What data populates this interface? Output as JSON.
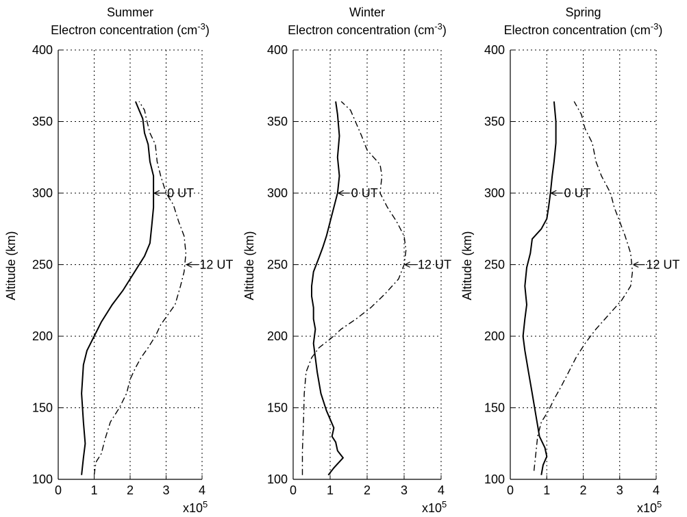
{
  "figure": {
    "ylabel": "Altitude (km)",
    "panel_subtitle": "Electron concentration (cm",
    "panel_subtitle_exp": "-3",
    "panel_subtitle_close": ")",
    "x_multiplier": "x10",
    "x_multiplier_exp": "5"
  },
  "chart_data": [
    {
      "type": "line",
      "title": "Summer",
      "subtitle": "Electron concentration (cm-3)",
      "xlabel": "",
      "xunit_multiplier": "x10^5",
      "ylabel": "Altitude (km)",
      "xlim": [
        0,
        4
      ],
      "ylim": [
        100,
        400
      ],
      "xticks": [
        0,
        1,
        2,
        3,
        4
      ],
      "yticks": [
        100,
        150,
        200,
        250,
        300,
        350,
        400
      ],
      "grid": true,
      "series": [
        {
          "name": "0 UT",
          "style": "solid",
          "points": [
            [
              0.65,
              103
            ],
            [
              0.7,
              115
            ],
            [
              0.75,
              125
            ],
            [
              0.7,
              140
            ],
            [
              0.65,
              160
            ],
            [
              0.7,
              180
            ],
            [
              0.8,
              190
            ],
            [
              1.0,
              200
            ],
            [
              1.2,
              210
            ],
            [
              1.5,
              222
            ],
            [
              1.8,
              232
            ],
            [
              2.0,
              240
            ],
            [
              2.2,
              248
            ],
            [
              2.4,
              256
            ],
            [
              2.55,
              265
            ],
            [
              2.6,
              277
            ],
            [
              2.65,
              290
            ],
            [
              2.65,
              300
            ],
            [
              2.65,
              312
            ],
            [
              2.55,
              322
            ],
            [
              2.5,
              334
            ],
            [
              2.4,
              342
            ],
            [
              2.35,
              352
            ],
            [
              2.25,
              358
            ],
            [
              2.15,
              364
            ]
          ]
        },
        {
          "name": "12 UT",
          "style": "dashdot",
          "points": [
            [
              1.0,
              103
            ],
            [
              1.05,
              112
            ],
            [
              1.2,
              118
            ],
            [
              1.3,
              128
            ],
            [
              1.45,
              140
            ],
            [
              1.7,
              150
            ],
            [
              1.9,
              160
            ],
            [
              2.0,
              170
            ],
            [
              2.15,
              178
            ],
            [
              2.3,
              185
            ],
            [
              2.5,
              192
            ],
            [
              2.7,
              200
            ],
            [
              2.85,
              208
            ],
            [
              3.05,
              215
            ],
            [
              3.25,
              222
            ],
            [
              3.4,
              235
            ],
            [
              3.5,
              245
            ],
            [
              3.55,
              258
            ],
            [
              3.5,
              270
            ],
            [
              3.35,
              280
            ],
            [
              3.2,
              292
            ],
            [
              3.0,
              300
            ],
            [
              2.85,
              312
            ],
            [
              2.75,
              322
            ],
            [
              2.7,
              334
            ],
            [
              2.55,
              342
            ],
            [
              2.45,
              352
            ],
            [
              2.4,
              358
            ],
            [
              2.25,
              364
            ]
          ]
        }
      ],
      "annotations": [
        {
          "text": "0 UT",
          "x": 2.65,
          "y": 300
        },
        {
          "text": "12 UT",
          "x": 3.55,
          "y": 250
        }
      ]
    },
    {
      "type": "line",
      "title": "Winter",
      "subtitle": "Electron concentration (cm-3)",
      "xlabel": "",
      "xunit_multiplier": "x10^5",
      "ylabel": "Altitude (km)",
      "xlim": [
        0,
        4
      ],
      "ylim": [
        100,
        400
      ],
      "xticks": [
        0,
        1,
        2,
        3,
        4
      ],
      "yticks": [
        100,
        150,
        200,
        250,
        300,
        350,
        400
      ],
      "grid": true,
      "series": [
        {
          "name": "0 UT",
          "style": "solid",
          "points": [
            [
              0.95,
              103
            ],
            [
              1.1,
              108
            ],
            [
              1.35,
              115
            ],
            [
              1.2,
              120
            ],
            [
              1.15,
              126
            ],
            [
              1.05,
              130
            ],
            [
              1.1,
              136
            ],
            [
              1.0,
              142
            ],
            [
              0.9,
              148
            ],
            [
              0.75,
              160
            ],
            [
              0.65,
              175
            ],
            [
              0.6,
              185
            ],
            [
              0.55,
              195
            ],
            [
              0.6,
              205
            ],
            [
              0.55,
              212
            ],
            [
              0.55,
              220
            ],
            [
              0.5,
              228
            ],
            [
              0.5,
              235
            ],
            [
              0.55,
              245
            ],
            [
              0.7,
              255
            ],
            [
              0.8,
              262
            ],
            [
              0.9,
              270
            ],
            [
              1.0,
              280
            ],
            [
              1.1,
              290
            ],
            [
              1.2,
              300
            ],
            [
              1.25,
              312
            ],
            [
              1.2,
              325
            ],
            [
              1.25,
              340
            ],
            [
              1.2,
              355
            ],
            [
              1.15,
              364
            ]
          ]
        },
        {
          "name": "12 UT",
          "style": "dashdot",
          "points": [
            [
              0.25,
              103
            ],
            [
              0.25,
              120
            ],
            [
              0.28,
              140
            ],
            [
              0.3,
              160
            ],
            [
              0.35,
              175
            ],
            [
              0.5,
              185
            ],
            [
              0.7,
              192
            ],
            [
              1.0,
              198
            ],
            [
              1.3,
              205
            ],
            [
              1.7,
              212
            ],
            [
              2.1,
              220
            ],
            [
              2.5,
              230
            ],
            [
              2.85,
              240
            ],
            [
              3.0,
              250
            ],
            [
              3.05,
              260
            ],
            [
              3.0,
              270
            ],
            [
              2.8,
              280
            ],
            [
              2.55,
              290
            ],
            [
              2.35,
              300
            ],
            [
              2.4,
              312
            ],
            [
              2.35,
              320
            ],
            [
              2.0,
              330
            ],
            [
              1.85,
              340
            ],
            [
              1.65,
              352
            ],
            [
              1.55,
              358
            ],
            [
              1.3,
              364
            ]
          ]
        }
      ],
      "annotations": [
        {
          "text": "0 UT",
          "x": 1.2,
          "y": 300
        },
        {
          "text": "12 UT",
          "x": 3.0,
          "y": 250
        }
      ]
    },
    {
      "type": "line",
      "title": "Spring",
      "subtitle": "Electron concentration (cm-3)",
      "xlabel": "",
      "xunit_multiplier": "x10^5",
      "ylabel": "Altitude (km)",
      "xlim": [
        0,
        4
      ],
      "ylim": [
        100,
        400
      ],
      "xticks": [
        0,
        1,
        2,
        3,
        4
      ],
      "yticks": [
        100,
        150,
        200,
        250,
        300,
        350,
        400
      ],
      "grid": true,
      "series": [
        {
          "name": "0 UT",
          "style": "solid",
          "points": [
            [
              0.85,
              103
            ],
            [
              0.9,
              110
            ],
            [
              1.0,
              116
            ],
            [
              0.95,
              122
            ],
            [
              0.8,
              130
            ],
            [
              0.7,
              145
            ],
            [
              0.6,
              160
            ],
            [
              0.5,
              175
            ],
            [
              0.4,
              190
            ],
            [
              0.35,
              200
            ],
            [
              0.4,
              212
            ],
            [
              0.45,
              222
            ],
            [
              0.4,
              235
            ],
            [
              0.45,
              248
            ],
            [
              0.55,
              258
            ],
            [
              0.6,
              268
            ],
            [
              0.85,
              275
            ],
            [
              1.0,
              282
            ],
            [
              1.05,
              290
            ],
            [
              1.1,
              300
            ],
            [
              1.15,
              312
            ],
            [
              1.2,
              322
            ],
            [
              1.25,
              335
            ],
            [
              1.25,
              350
            ],
            [
              1.2,
              364
            ]
          ]
        },
        {
          "name": "12 UT",
          "style": "dashdot",
          "points": [
            [
              0.65,
              106
            ],
            [
              0.7,
              118
            ],
            [
              0.75,
              130
            ],
            [
              0.85,
              140
            ],
            [
              1.05,
              148
            ],
            [
              1.2,
              156
            ],
            [
              1.4,
              165
            ],
            [
              1.6,
              175
            ],
            [
              1.8,
              185
            ],
            [
              2.05,
              195
            ],
            [
              2.35,
              205
            ],
            [
              2.7,
              215
            ],
            [
              3.05,
              225
            ],
            [
              3.3,
              235
            ],
            [
              3.35,
              245
            ],
            [
              3.3,
              258
            ],
            [
              3.15,
              270
            ],
            [
              3.0,
              280
            ],
            [
              2.85,
              290
            ],
            [
              2.75,
              300
            ],
            [
              2.5,
              312
            ],
            [
              2.35,
              322
            ],
            [
              2.25,
              335
            ],
            [
              2.05,
              345
            ],
            [
              1.95,
              355
            ],
            [
              1.75,
              364
            ]
          ]
        }
      ],
      "annotations": [
        {
          "text": "0 UT",
          "x": 1.1,
          "y": 300
        },
        {
          "text": "12 UT",
          "x": 3.35,
          "y": 250
        }
      ]
    }
  ]
}
